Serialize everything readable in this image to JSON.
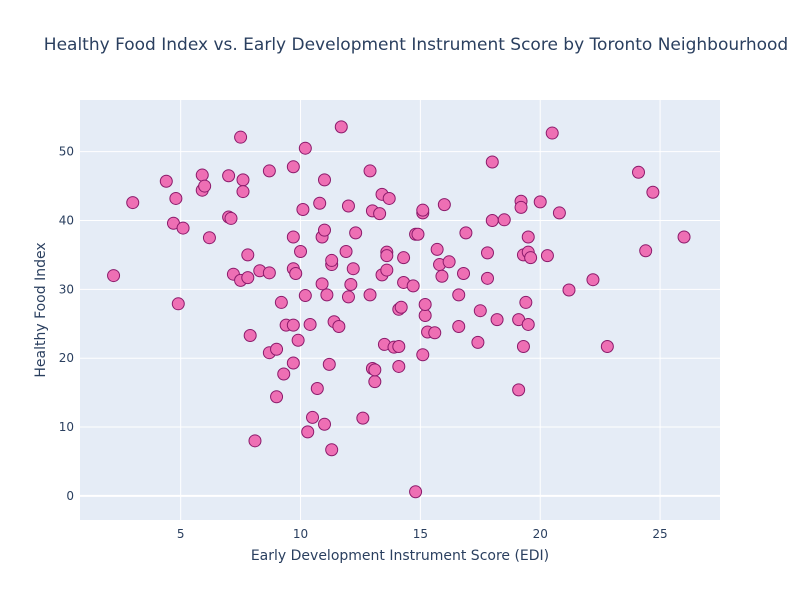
{
  "chart_data": {
    "type": "scatter",
    "title": "Healthy Food Index vs. Early Development Instrument Score by Toronto Neighbourhood",
    "xlabel": "Early Development Instrument Score (EDI)",
    "ylabel": "Healthy Food Index",
    "xlim": [
      0.8,
      27.5
    ],
    "ylim": [
      -3.5,
      57.5
    ],
    "xticks": [
      5,
      10,
      15,
      20,
      25
    ],
    "yticks": [
      0,
      10,
      20,
      30,
      40,
      50
    ],
    "grid": true,
    "legend": "none",
    "colors": {
      "plot_bg": "#e5ecf6",
      "grid": "#ffffff",
      "marker_fill": "#ee6fb4",
      "marker_edge": "#8b1a6b",
      "text": "#2a3f5f"
    },
    "series": [
      {
        "points": [
          [
            2.2,
            32.0
          ],
          [
            3.0,
            42.6
          ],
          [
            4.4,
            45.7
          ],
          [
            4.7,
            39.6
          ],
          [
            4.8,
            43.2
          ],
          [
            4.9,
            27.9
          ],
          [
            5.1,
            38.9
          ],
          [
            5.9,
            44.4
          ],
          [
            5.9,
            46.6
          ],
          [
            6.0,
            45.0
          ],
          [
            6.2,
            37.5
          ],
          [
            7.0,
            46.5
          ],
          [
            7.0,
            40.5
          ],
          [
            7.1,
            40.3
          ],
          [
            7.2,
            32.2
          ],
          [
            7.5,
            52.1
          ],
          [
            7.5,
            31.3
          ],
          [
            7.6,
            45.9
          ],
          [
            7.6,
            44.2
          ],
          [
            7.8,
            31.7
          ],
          [
            7.8,
            35.0
          ],
          [
            7.9,
            23.3
          ],
          [
            8.1,
            8.0
          ],
          [
            8.3,
            32.7
          ],
          [
            8.7,
            47.2
          ],
          [
            8.7,
            32.4
          ],
          [
            8.7,
            20.8
          ],
          [
            9.0,
            21.3
          ],
          [
            9.0,
            14.4
          ],
          [
            9.2,
            28.1
          ],
          [
            9.3,
            17.7
          ],
          [
            9.4,
            24.8
          ],
          [
            9.7,
            47.8
          ],
          [
            9.7,
            37.6
          ],
          [
            9.7,
            33.0
          ],
          [
            9.7,
            24.8
          ],
          [
            9.7,
            19.3
          ],
          [
            9.8,
            32.3
          ],
          [
            9.9,
            22.6
          ],
          [
            10.0,
            35.5
          ],
          [
            10.1,
            41.6
          ],
          [
            10.2,
            50.5
          ],
          [
            10.2,
            29.1
          ],
          [
            10.3,
            9.3
          ],
          [
            10.4,
            24.9
          ],
          [
            10.5,
            11.4
          ],
          [
            10.7,
            15.6
          ],
          [
            10.8,
            42.5
          ],
          [
            10.9,
            37.6
          ],
          [
            10.9,
            30.8
          ],
          [
            11.0,
            45.9
          ],
          [
            11.0,
            10.4
          ],
          [
            11.0,
            38.6
          ],
          [
            11.1,
            29.2
          ],
          [
            11.2,
            19.1
          ],
          [
            11.3,
            33.6
          ],
          [
            11.3,
            34.2
          ],
          [
            11.3,
            6.7
          ],
          [
            11.4,
            25.3
          ],
          [
            11.6,
            24.6
          ],
          [
            11.7,
            53.6
          ],
          [
            11.9,
            35.5
          ],
          [
            12.0,
            42.1
          ],
          [
            12.0,
            28.9
          ],
          [
            12.1,
            30.7
          ],
          [
            12.2,
            33.0
          ],
          [
            12.3,
            38.2
          ],
          [
            12.6,
            11.3
          ],
          [
            12.9,
            29.2
          ],
          [
            12.9,
            47.2
          ],
          [
            13.0,
            41.4
          ],
          [
            13.0,
            18.5
          ],
          [
            13.1,
            16.6
          ],
          [
            13.1,
            18.3
          ],
          [
            13.3,
            41.0
          ],
          [
            13.4,
            43.8
          ],
          [
            13.4,
            32.1
          ],
          [
            13.5,
            22.0
          ],
          [
            13.6,
            32.8
          ],
          [
            13.6,
            35.4
          ],
          [
            13.6,
            34.9
          ],
          [
            13.7,
            43.2
          ],
          [
            13.9,
            21.6
          ],
          [
            14.1,
            21.7
          ],
          [
            14.1,
            18.8
          ],
          [
            14.1,
            27.1
          ],
          [
            14.2,
            27.4
          ],
          [
            14.3,
            34.6
          ],
          [
            14.3,
            31.0
          ],
          [
            14.7,
            30.5
          ],
          [
            14.8,
            38.0
          ],
          [
            14.8,
            0.6
          ],
          [
            14.9,
            38.0
          ],
          [
            15.1,
            41.1
          ],
          [
            15.1,
            41.5
          ],
          [
            15.1,
            20.5
          ],
          [
            15.2,
            26.2
          ],
          [
            15.2,
            27.8
          ],
          [
            15.3,
            23.8
          ],
          [
            15.6,
            23.7
          ],
          [
            15.7,
            35.8
          ],
          [
            15.8,
            33.6
          ],
          [
            15.9,
            31.9
          ],
          [
            16.0,
            42.3
          ],
          [
            16.2,
            34.0
          ],
          [
            16.6,
            24.6
          ],
          [
            16.6,
            29.2
          ],
          [
            16.8,
            32.3
          ],
          [
            16.9,
            38.2
          ],
          [
            17.4,
            22.3
          ],
          [
            17.5,
            26.9
          ],
          [
            17.8,
            31.6
          ],
          [
            17.8,
            35.3
          ],
          [
            18.0,
            40.0
          ],
          [
            18.0,
            48.5
          ],
          [
            18.2,
            25.6
          ],
          [
            18.5,
            40.1
          ],
          [
            19.1,
            15.4
          ],
          [
            19.1,
            25.6
          ],
          [
            19.2,
            42.8
          ],
          [
            19.2,
            41.9
          ],
          [
            19.3,
            35.0
          ],
          [
            19.3,
            21.7
          ],
          [
            19.4,
            28.1
          ],
          [
            19.5,
            35.4
          ],
          [
            19.5,
            24.9
          ],
          [
            19.5,
            37.6
          ],
          [
            19.6,
            34.6
          ],
          [
            20.0,
            42.7
          ],
          [
            20.3,
            34.9
          ],
          [
            20.5,
            52.7
          ],
          [
            20.8,
            41.1
          ],
          [
            21.2,
            29.9
          ],
          [
            22.2,
            31.4
          ],
          [
            22.8,
            21.7
          ],
          [
            24.1,
            47.0
          ],
          [
            24.4,
            35.6
          ],
          [
            24.7,
            44.1
          ],
          [
            26.0,
            37.6
          ]
        ]
      }
    ]
  }
}
